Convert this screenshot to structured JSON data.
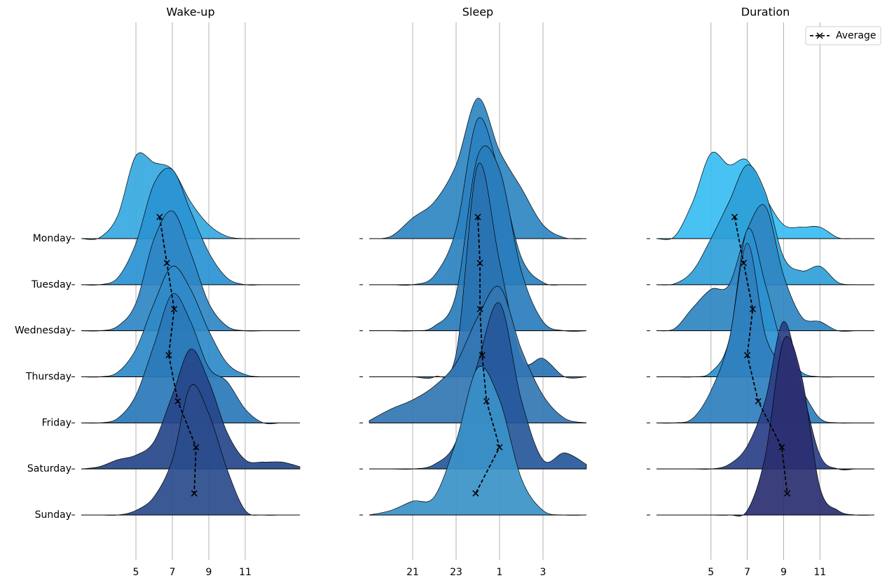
{
  "chart_data": [
    {
      "type": "ridgeline",
      "title": "Wake-up",
      "categories": [
        "Monday",
        "Tuesday",
        "Wednesday",
        "Thursday",
        "Friday",
        "Saturday",
        "Sunday"
      ],
      "xlim": [
        2,
        14
      ],
      "xticks": [
        5,
        7,
        9,
        11
      ],
      "grid": true,
      "x": [
        2,
        3,
        4,
        5,
        6,
        7,
        8,
        9,
        10,
        11,
        12,
        13,
        14
      ],
      "series": [
        {
          "color": "#36a9e1",
          "values": [
            0,
            0.02,
            0.5,
            1.8,
            1.65,
            1.5,
            0.8,
            0.3,
            0.05,
            0,
            0,
            0,
            0
          ]
        },
        {
          "color": "#2a92d2",
          "values": [
            0,
            0,
            0.15,
            0.9,
            2.2,
            2.5,
            1.6,
            0.7,
            0.15,
            0,
            0,
            0,
            0
          ]
        },
        {
          "color": "#2f86c4",
          "values": [
            0,
            0,
            0.1,
            0.6,
            2.0,
            2.6,
            1.7,
            0.6,
            0.1,
            0,
            0,
            0,
            0
          ]
        },
        {
          "color": "#2f8ac8",
          "values": [
            0,
            0,
            0.1,
            0.6,
            1.6,
            2.4,
            1.9,
            1.0,
            0.3,
            0.05,
            0,
            0,
            0
          ]
        },
        {
          "color": "#2a78b8",
          "values": [
            0,
            0,
            0.1,
            0.6,
            1.7,
            2.8,
            2.2,
            1.2,
            0.9,
            0.3,
            0,
            0,
            0
          ]
        },
        {
          "color": "#26468a",
          "values": [
            0,
            0.05,
            0.2,
            0.3,
            0.6,
            1.6,
            2.6,
            1.9,
            0.8,
            0.2,
            0.15,
            0.15,
            0.05
          ]
        },
        {
          "color": "#2a4c8c",
          "values": [
            0,
            0,
            0,
            0.1,
            0.4,
            1.2,
            2.8,
            2.2,
            1.0,
            0.1,
            0,
            0,
            0
          ]
        }
      ],
      "average": {
        "values": [
          6.3,
          6.7,
          7.1,
          6.8,
          7.3,
          8.3,
          8.2
        ]
      }
    },
    {
      "type": "ridgeline",
      "title": "Sleep",
      "xlim": [
        19,
        29
      ],
      "xticks": [
        21,
        23,
        {
          "value": 25,
          "label": "1"
        },
        {
          "value": 27,
          "label": "3"
        }
      ],
      "grid": true,
      "x": [
        19,
        20,
        21,
        22,
        23,
        24,
        25,
        26,
        27,
        28,
        29
      ],
      "series": [
        {
          "color": "#2f87c2",
          "values": [
            0,
            0.05,
            0.45,
            0.8,
            1.6,
            3.05,
            1.9,
            1.1,
            0.3,
            0.02,
            0
          ]
        },
        {
          "color": "#2b82c0",
          "values": [
            0,
            0,
            0,
            0.2,
            1.2,
            3.6,
            2.4,
            0.6,
            0.05,
            0,
            0
          ]
        },
        {
          "color": "#2a7dbc",
          "values": [
            0,
            0,
            0,
            0.1,
            0.8,
            3.8,
            3.5,
            1.3,
            0.2,
            0,
            0
          ]
        },
        {
          "color": "#2a72b2",
          "values": [
            0,
            0,
            0,
            0,
            0.5,
            4.6,
            2.5,
            0.4,
            0.4,
            0,
            0
          ]
        },
        {
          "color": "#3376b3",
          "values": [
            0.05,
            0.3,
            0.5,
            0.8,
            1.3,
            2.3,
            2.95,
            1.6,
            0.6,
            0.1,
            0
          ]
        },
        {
          "color": "#25589a",
          "values": [
            0,
            0,
            0,
            0.1,
            0.6,
            2.3,
            3.6,
            1.5,
            0.2,
            0.35,
            0.1
          ]
        },
        {
          "color": "#3a93c8",
          "values": [
            0,
            0.1,
            0.3,
            0.4,
            1.6,
            3.2,
            2.5,
            0.8,
            0.1,
            0,
            0
          ]
        }
      ],
      "average": {
        "values": [
          24.0,
          24.1,
          24.1,
          24.2,
          24.4,
          25.0,
          23.9
        ]
      }
    },
    {
      "type": "ridgeline",
      "title": "Duration",
      "xlim": [
        2,
        14
      ],
      "xticks": [
        5,
        7,
        9,
        11
      ],
      "grid": true,
      "legend": "upper right",
      "x": [
        2,
        3,
        4,
        5,
        6,
        7,
        8,
        9,
        10,
        11,
        12,
        13,
        14
      ],
      "series": [
        {
          "color": "#38bdf2",
          "values": [
            0,
            0.05,
            0.8,
            1.85,
            1.6,
            1.7,
            0.9,
            0.3,
            0.25,
            0.25,
            0.02,
            0,
            0
          ]
        },
        {
          "color": "#2f9fd8",
          "values": [
            0,
            0.02,
            0.3,
            1.0,
            1.8,
            2.6,
            2.0,
            0.6,
            0.3,
            0.4,
            0.05,
            0,
            0
          ]
        },
        {
          "color": "#2f85c2",
          "values": [
            0,
            0.05,
            0.5,
            0.9,
            1.0,
            2.2,
            2.7,
            1.2,
            0.3,
            0.2,
            0,
            0,
            0
          ]
        },
        {
          "color": "#2b90cf",
          "values": [
            0,
            0,
            0,
            0.1,
            0.8,
            3.2,
            2.0,
            0.6,
            0.1,
            0,
            0,
            0,
            0
          ]
        },
        {
          "color": "#2f7fbe",
          "values": [
            0,
            0,
            0.1,
            0.7,
            1.8,
            3.9,
            1.9,
            1.2,
            0.7,
            0.1,
            0,
            0,
            0
          ]
        },
        {
          "color": "#2a3f85",
          "values": [
            0,
            0,
            0,
            0,
            0.1,
            0.5,
            1.5,
            3.2,
            1.8,
            0.3,
            0,
            0,
            0
          ]
        },
        {
          "color": "#2a2f70",
          "values": [
            0,
            0,
            0,
            0,
            0,
            0.1,
            1.3,
            3.8,
            3.0,
            0.6,
            0.1,
            0,
            0
          ]
        }
      ],
      "average": {
        "name": "Average",
        "values": [
          6.3,
          6.8,
          7.3,
          7.0,
          7.6,
          8.9,
          9.2
        ]
      }
    }
  ]
}
